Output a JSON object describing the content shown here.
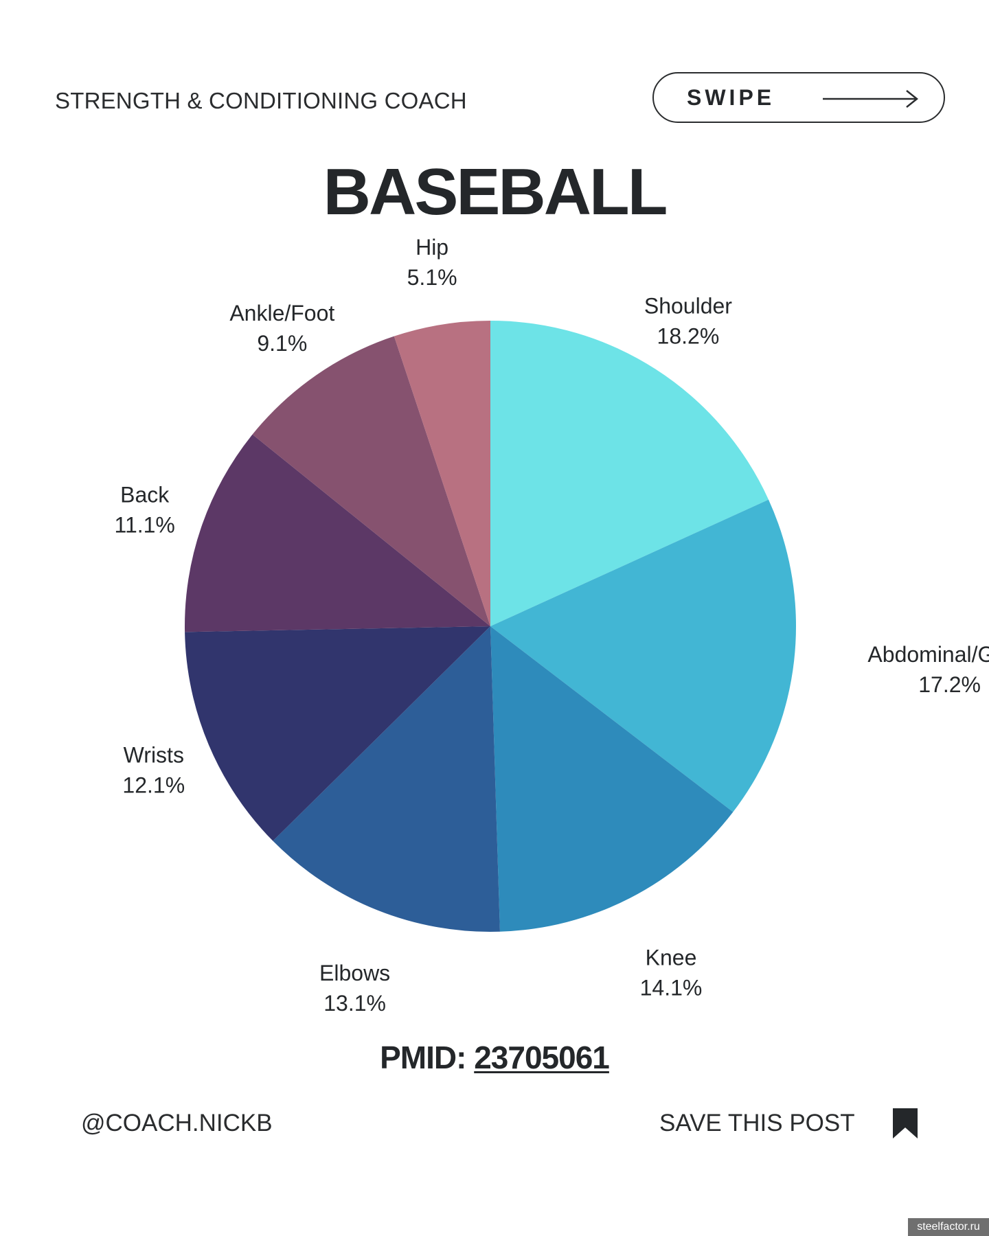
{
  "header": {
    "kicker": "STRENGTH & CONDITIONING COACH",
    "swipe_label": "SWIPE",
    "swipe_icon": "arrow-right-icon"
  },
  "title": "BASEBALL",
  "chart_data": {
    "type": "pie",
    "start": "12 o'clock",
    "direction": "clockwise",
    "slices": [
      {
        "label": "Shoulder",
        "value": 18.2,
        "value_label": "18.2%",
        "color": "#6de3e7"
      },
      {
        "label": "Abdominal/Groin",
        "value": 17.2,
        "value_label": "17.2%",
        "color": "#42b6d4"
      },
      {
        "label": "Knee",
        "value": 14.1,
        "value_label": "14.1%",
        "color": "#2e8bbb"
      },
      {
        "label": "Elbows",
        "value": 13.1,
        "value_label": "13.1%",
        "color": "#2d5e98"
      },
      {
        "label": "Wrists",
        "value": 12.1,
        "value_label": "12.1%",
        "color": "#31356d"
      },
      {
        "label": "Back",
        "value": 11.1,
        "value_label": "11.1%",
        "color": "#5c3866"
      },
      {
        "label": "Ankle/Foot",
        "value": 9.1,
        "value_label": "9.1%",
        "color": "#86526f"
      },
      {
        "label": "Hip",
        "value": 5.1,
        "value_label": "5.1%",
        "color": "#b87181"
      }
    ]
  },
  "footer": {
    "pmid_prefix": "PMID: ",
    "pmid_value": "23705061",
    "handle": "@COACH.NICKB",
    "save_label": "SAVE THIS POST",
    "save_icon": "bookmark-icon"
  },
  "watermark": "steelfactor.ru",
  "colors": {
    "text": "#24272a",
    "background": "#ffffff"
  }
}
